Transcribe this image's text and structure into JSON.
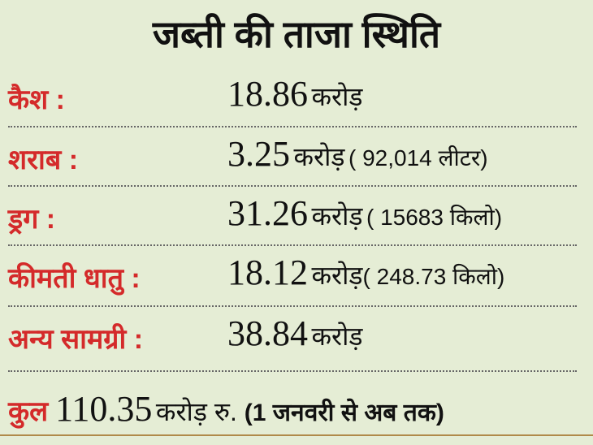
{
  "title": "जब्ती की ताजा स्थिति",
  "rows": [
    {
      "label": "कैश  :",
      "amount": "18.86",
      "unit": "करोड़",
      "extra": ""
    },
    {
      "label": "शराब :",
      "amount": "3.25",
      "unit": "करोड़",
      "extra": "( 92,014 लीटर)"
    },
    {
      "label": "ड्रग :",
      "amount": "31.26",
      "unit": "करोड़",
      "extra": "( 15683 किलो)"
    },
    {
      "label": "कीमती धातु :",
      "amount": "18.12",
      "unit": "करोड़",
      "extra": "( 248.73 किलो)"
    },
    {
      "label": "अन्य सामग्री :",
      "amount": "38.84",
      "unit": "करोड़",
      "extra": ""
    }
  ],
  "total": {
    "label": "कुल",
    "amount": "110.35",
    "unit": "करोड़ रु.",
    "note": "(1 जनवरी से अब तक)"
  },
  "colors": {
    "background": "#e5edd5",
    "label": "#d42a2a",
    "text": "#111111"
  }
}
